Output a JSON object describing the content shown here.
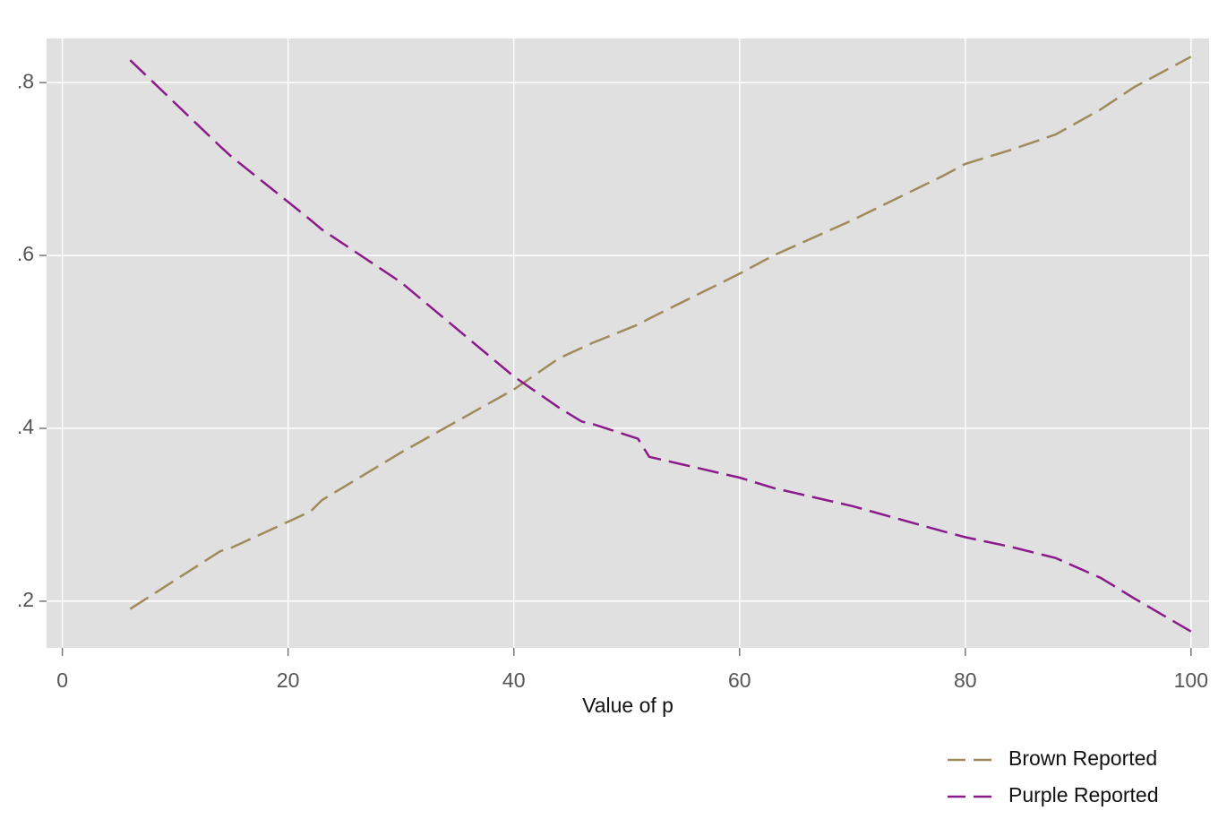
{
  "chart_data": {
    "type": "line",
    "xlabel": "Value of p",
    "x": [
      6,
      14,
      15,
      20,
      22,
      23,
      30,
      40,
      44,
      46,
      47,
      51,
      52,
      60,
      63,
      70,
      78,
      80,
      84,
      88,
      92,
      95,
      100
    ],
    "series": [
      {
        "name": "Brown Reported",
        "color": "#a08a5a",
        "values": [
          0.191,
          0.258,
          0.262,
          0.292,
          0.304,
          0.317,
          0.372,
          0.445,
          0.481,
          0.493,
          0.499,
          0.52,
          0.527,
          0.579,
          0.6,
          0.641,
          0.692,
          0.706,
          0.722,
          0.74,
          0.769,
          0.795,
          0.83
        ]
      },
      {
        "name": "Purple Reported",
        "color": "#8b1a8b",
        "values": [
          0.826,
          0.726,
          0.714,
          0.662,
          0.641,
          0.63,
          0.569,
          0.46,
          0.424,
          0.408,
          0.405,
          0.388,
          0.367,
          0.343,
          0.331,
          0.31,
          0.281,
          0.274,
          0.263,
          0.25,
          0.227,
          0.203,
          0.165
        ]
      }
    ],
    "xlim": [
      -1.4,
      101.6
    ],
    "xticks": [
      0,
      20,
      40,
      60,
      80,
      100
    ],
    "ylim": [
      0.146,
      0.851
    ],
    "yticks": [
      {
        "value": 0.2,
        "label": ".2"
      },
      {
        "value": 0.4,
        "label": ".4"
      },
      {
        "value": 0.6,
        "label": ".6"
      },
      {
        "value": 0.8,
        "label": ".8"
      }
    ],
    "grid": true,
    "legend": "bottom-right"
  }
}
